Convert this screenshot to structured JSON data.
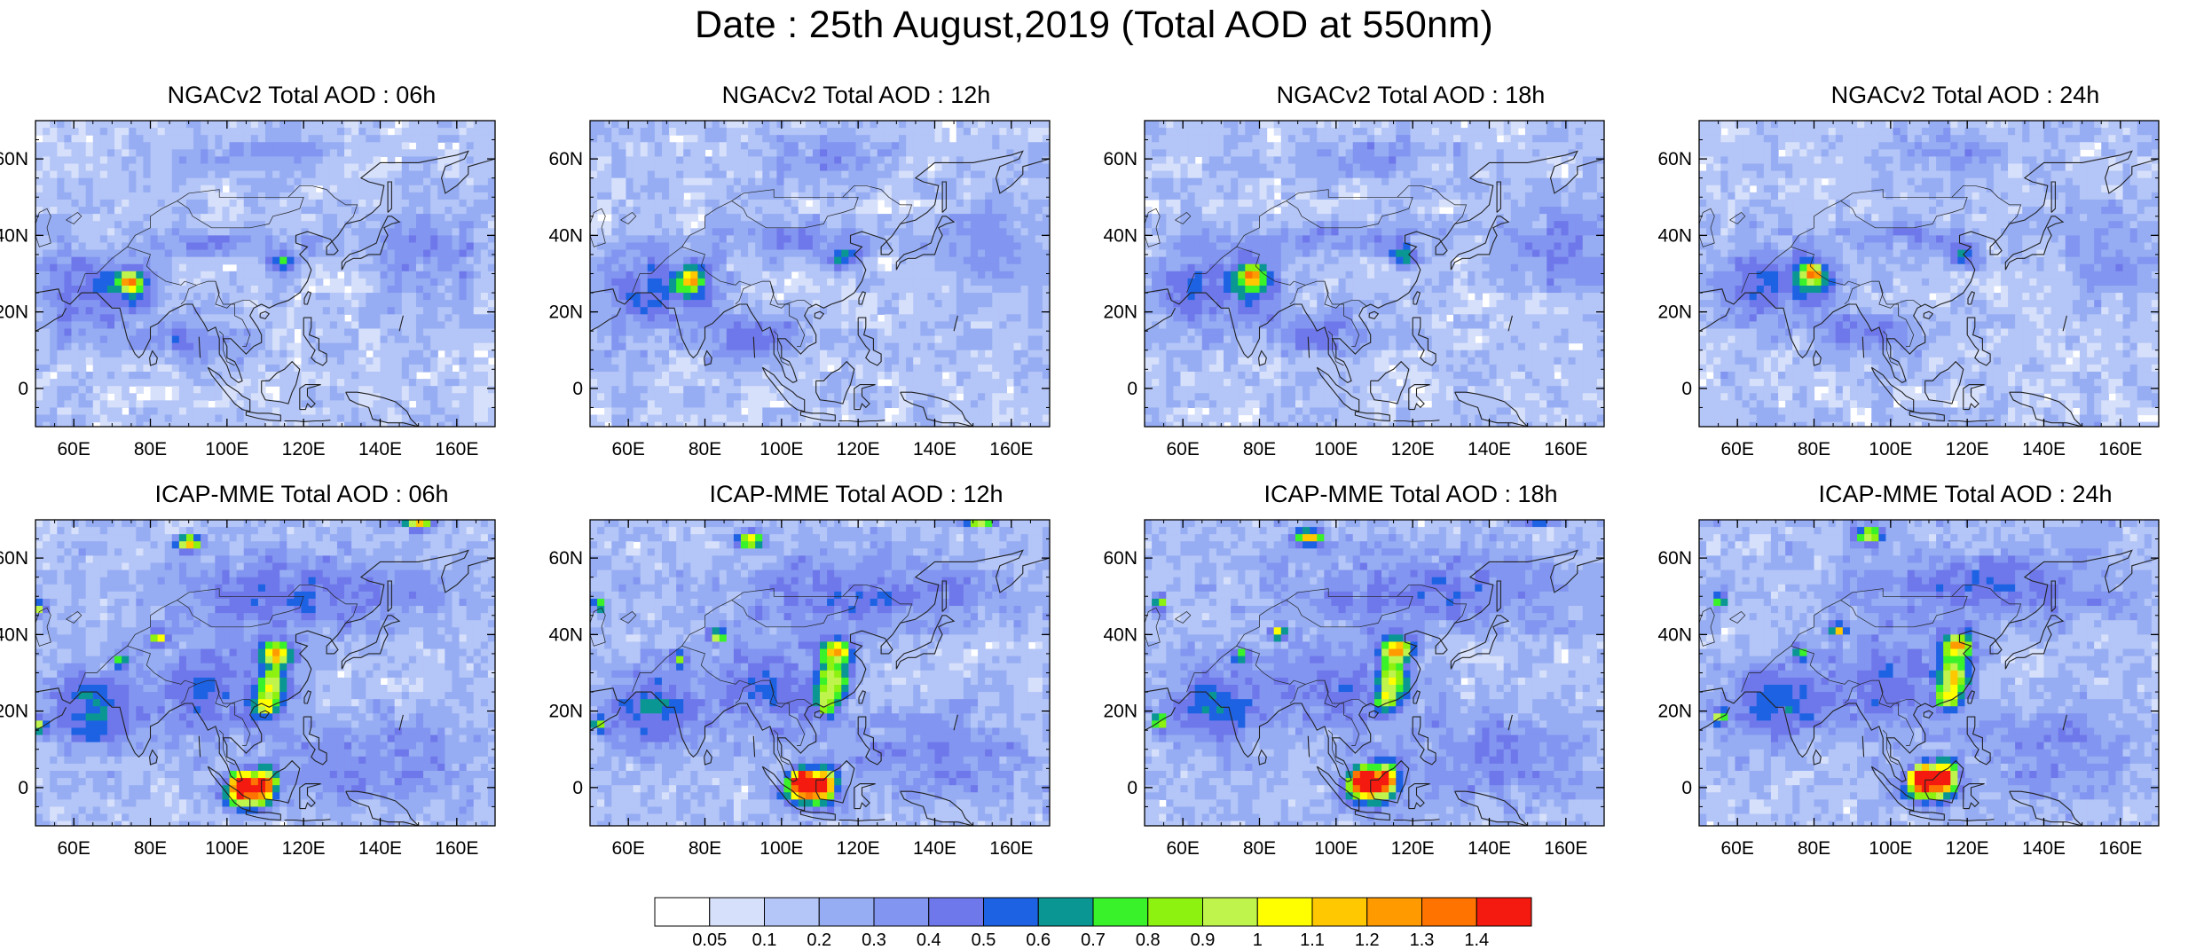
{
  "title": "Date : 25th August,2019 (Total AOD at 550nm)",
  "map": {
    "projection": "cylindrical-equidistant",
    "lon_range": [
      50,
      170
    ],
    "lat_range": [
      -10,
      70
    ],
    "lon_ticks": [
      60,
      80,
      100,
      120,
      140,
      160
    ],
    "lat_ticks": [
      0,
      20,
      40,
      60
    ],
    "lon_tick_labels": [
      "60E",
      "80E",
      "100E",
      "120E",
      "140E",
      "160E"
    ],
    "lat_tick_labels": [
      "0",
      "20N",
      "40N",
      "60N"
    ],
    "coastline_color": "#222222"
  },
  "panels": [
    {
      "model": "NGAC",
      "title": "NGACv2 Total AOD : 06h",
      "hour": 6
    },
    {
      "model": "NGAC",
      "title": "NGACv2 Total AOD : 12h",
      "hour": 12
    },
    {
      "model": "NGAC",
      "title": "NGACv2 Total AOD : 18h",
      "hour": 18
    },
    {
      "model": "NGAC",
      "title": "NGACv2 Total AOD : 24h",
      "hour": 24
    },
    {
      "model": "ICAP",
      "title": "ICAP-MME Total AOD : 06h",
      "hour": 6
    },
    {
      "model": "ICAP",
      "title": "ICAP-MME Total AOD : 12h",
      "hour": 12
    },
    {
      "model": "ICAP",
      "title": "ICAP-MME Total AOD : 18h",
      "hour": 18
    },
    {
      "model": "ICAP",
      "title": "ICAP-MME Total AOD : 24h",
      "hour": 24
    }
  ],
  "colorbar": {
    "levels": [
      0.05,
      0.1,
      0.2,
      0.3,
      0.4,
      0.5,
      0.6,
      0.7,
      0.8,
      0.9,
      1,
      1.1,
      1.2,
      1.3,
      1.4
    ],
    "labels": [
      "0.05",
      "0.1",
      "0.2",
      "0.3",
      "0.4",
      "0.5",
      "0.6",
      "0.7",
      "0.8",
      "0.9",
      "1",
      "1.1",
      "1.2",
      "1.3",
      "1.4"
    ],
    "colors": [
      "#ffffff",
      "#d6e0fb",
      "#b4c5f7",
      "#96adf3",
      "#8295f0",
      "#6f78ea",
      "#1e62e4",
      "#0a9794",
      "#3af22a",
      "#8df20f",
      "#bff44d",
      "#ffff00",
      "#ffc800",
      "#ff9b00",
      "#ff7300",
      "#f51a0f"
    ]
  },
  "aerosol_sources": {
    "NGAC": [
      {
        "lon": 75,
        "lat": 28,
        "peak": 0.85,
        "rx": 2.5,
        "ry": 2.5
      },
      {
        "lon": 75,
        "lat": 26,
        "peak": 0.42,
        "rx": 8,
        "ry": 7
      },
      {
        "lon": 60,
        "lat": 25,
        "peak": 0.3,
        "rx": 10,
        "ry": 12
      },
      {
        "lon": 115,
        "lat": 33,
        "peak": 0.5,
        "rx": 4,
        "ry": 2.5
      },
      {
        "lon": 90,
        "lat": 13,
        "peak": 0.26,
        "rx": 16,
        "ry": 6
      },
      {
        "lon": 100,
        "lat": 38,
        "peak": 0.22,
        "rx": 22,
        "ry": 4
      },
      {
        "lon": 155,
        "lat": 35,
        "peak": 0.2,
        "rx": 15,
        "ry": 12
      },
      {
        "lon": 110,
        "lat": 60,
        "peak": 0.18,
        "rx": 18,
        "ry": 6
      }
    ],
    "ICAP": [
      {
        "lon": 104,
        "lat": 1,
        "peak": 1.35,
        "rx": 3,
        "ry": 3
      },
      {
        "lon": 110,
        "lat": 1,
        "peak": 1.05,
        "rx": 3,
        "ry": 4
      },
      {
        "lon": 105,
        "lat": -2,
        "peak": 0.9,
        "rx": 6,
        "ry": 4
      },
      {
        "lon": 113,
        "lat": 35,
        "peak": 1.0,
        "rx": 4,
        "ry": 3
      },
      {
        "lon": 112,
        "lat": 27,
        "peak": 0.78,
        "rx": 4,
        "ry": 5
      },
      {
        "lon": 110,
        "lat": 21,
        "peak": 0.6,
        "rx": 3,
        "ry": 3
      },
      {
        "lon": 90,
        "lat": 64,
        "peak": 0.95,
        "rx": 3.5,
        "ry": 2
      },
      {
        "lon": 150,
        "lat": 69,
        "peak": 0.9,
        "rx": 4,
        "ry": 1.5
      },
      {
        "lon": 82,
        "lat": 39,
        "peak": 0.85,
        "rx": 2,
        "ry": 1.5
      },
      {
        "lon": 51,
        "lat": 47,
        "peak": 0.8,
        "rx": 1.8,
        "ry": 1.8
      },
      {
        "lon": 51,
        "lat": 16,
        "peak": 0.75,
        "rx": 1.8,
        "ry": 1.8
      },
      {
        "lon": 72,
        "lat": 33,
        "peak": 0.6,
        "rx": 2,
        "ry": 2
      },
      {
        "lon": 65,
        "lat": 20,
        "peak": 0.42,
        "rx": 12,
        "ry": 10
      },
      {
        "lon": 95,
        "lat": 25,
        "peak": 0.3,
        "rx": 15,
        "ry": 12
      },
      {
        "lon": 120,
        "lat": 50,
        "peak": 0.28,
        "rx": 35,
        "ry": 10
      },
      {
        "lon": 140,
        "lat": 8,
        "peak": 0.24,
        "rx": 25,
        "ry": 12
      }
    ]
  }
}
